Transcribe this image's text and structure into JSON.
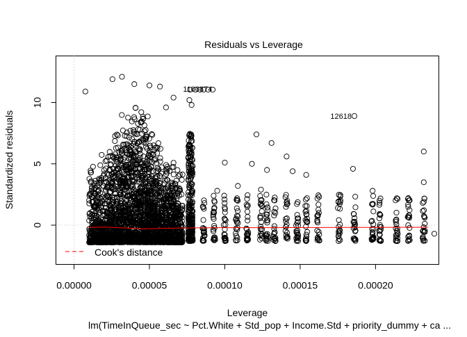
{
  "chart_data": {
    "type": "scatter",
    "title": "Residuals vs Leverage",
    "xlabel": "Leverage",
    "ylabel": "Standardized residuals",
    "subtitle": "lm(TimeInQueue_sec ~ Pct.White + Std_pop + Income.Std + priority_dummy + ca ...",
    "xlim": [
      -1.2e-05,
      0.000242
    ],
    "ylim": [
      -3.2,
      13.8
    ],
    "x_ticks": [
      0.0,
      5e-05,
      0.0001,
      0.00015,
      0.0002
    ],
    "x_tick_labels": [
      "0.00000",
      "0.00005",
      "0.00010",
      "0.00015",
      "0.00020"
    ],
    "y_ticks": [
      0,
      5,
      10
    ],
    "y_tick_labels": [
      "0",
      "5",
      "10"
    ],
    "reference_lines": {
      "h": 0,
      "v": 0,
      "style": "dotted",
      "color": "#bbbbbb"
    },
    "smooth_line": {
      "color": "#ff0000",
      "x": [
        1e-05,
        2e-05,
        3e-05,
        4.5e-05,
        6e-05,
        8e-05,
        0.0001,
        0.00013,
        0.00016,
        0.0002,
        0.000235
      ],
      "y": [
        -0.18,
        -0.15,
        -0.2,
        -0.3,
        -0.26,
        -0.22,
        -0.2,
        -0.2,
        -0.19,
        -0.18,
        -0.17
      ]
    },
    "legend": {
      "position": "bottom-left",
      "items": [
        {
          "label": "Cook's distance",
          "style": "dashed",
          "color": "#ff0000"
        }
      ]
    },
    "annotations": [
      {
        "label": "1100874",
        "x": 9.35e-05,
        "y": 11.1
      },
      {
        "label": "12618",
        "x": 0.000186,
        "y": 8.9
      }
    ],
    "outliers": [
      [
        7.5e-06,
        10.9
      ],
      [
        2.55e-05,
        11.9
      ],
      [
        3.18e-05,
        12.1
      ],
      [
        4e-05,
        11.5
      ],
      [
        5e-05,
        11.4
      ],
      [
        5.7e-05,
        11.3
      ],
      [
        6.6e-05,
        10.4
      ],
      [
        6.1e-05,
        9.6
      ],
      [
        7.7e-05,
        11.05
      ],
      [
        8.05e-05,
        11.05
      ],
      [
        8.35e-05,
        11.05
      ],
      [
        8.6e-05,
        11.05
      ],
      [
        8.9e-05,
        11.05
      ],
      [
        9.2e-05,
        11.05
      ],
      [
        7.65e-05,
        10.2
      ],
      [
        7.8e-05,
        9.8
      ],
      [
        0.0001,
        5.1
      ],
      [
        0.000121,
        7.4
      ],
      [
        0.000131,
        6.7
      ],
      [
        0.000145,
        4.4
      ],
      [
        0.000154,
        4.1
      ],
      [
        0.000186,
        8.9
      ],
      [
        0.000185,
        4.6
      ],
      [
        0.000232,
        6.0
      ],
      [
        0.000232,
        3.5
      ],
      [
        0.000232,
        1.9
      ],
      [
        0.000118,
        5.0
      ],
      [
        0.000128,
        4.5
      ],
      [
        0.000141,
        5.6
      ],
      [
        0.000175,
        1.4
      ],
      [
        0.000198,
        2.8
      ],
      [
        0.000239,
        -0.7
      ],
      [
        0.000115,
        1.1
      ],
      [
        0.0001087,
        3.2
      ],
      [
        9.5e-05,
        2.8
      ],
      [
        0.000124,
        2.9
      ]
    ]
  }
}
